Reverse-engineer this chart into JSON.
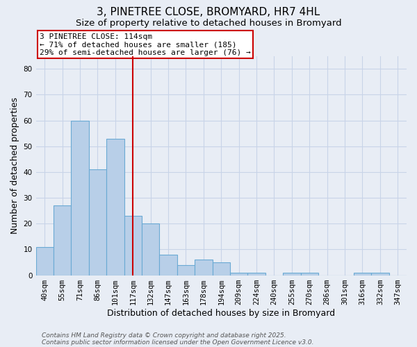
{
  "title": "3, PINETREE CLOSE, BROMYARD, HR7 4HL",
  "subtitle": "Size of property relative to detached houses in Bromyard",
  "xlabel": "Distribution of detached houses by size in Bromyard",
  "ylabel": "Number of detached properties",
  "categories": [
    "40sqm",
    "55sqm",
    "71sqm",
    "86sqm",
    "101sqm",
    "117sqm",
    "132sqm",
    "147sqm",
    "163sqm",
    "178sqm",
    "194sqm",
    "209sqm",
    "224sqm",
    "240sqm",
    "255sqm",
    "270sqm",
    "286sqm",
    "301sqm",
    "316sqm",
    "332sqm",
    "347sqm"
  ],
  "values": [
    11,
    27,
    60,
    41,
    53,
    23,
    20,
    8,
    4,
    6,
    5,
    1,
    1,
    0,
    1,
    1,
    0,
    0,
    1,
    1,
    0
  ],
  "bar_color": "#b8cfe8",
  "bar_edge_color": "#6aaad4",
  "vline_x_index": 5,
  "vline_color": "#cc0000",
  "annotation_text": "3 PINETREE CLOSE: 114sqm\n← 71% of detached houses are smaller (185)\n29% of semi-detached houses are larger (76) →",
  "annotation_box_color": "#ffffff",
  "annotation_box_edge": "#cc0000",
  "ylim": [
    0,
    85
  ],
  "yticks": [
    0,
    10,
    20,
    30,
    40,
    50,
    60,
    70,
    80
  ],
  "grid_color": "#c8d4e8",
  "background_color": "#e8edf5",
  "footnote1": "Contains HM Land Registry data © Crown copyright and database right 2025.",
  "footnote2": "Contains public sector information licensed under the Open Government Licence v3.0.",
  "title_fontsize": 11,
  "subtitle_fontsize": 9.5,
  "xlabel_fontsize": 9,
  "ylabel_fontsize": 9,
  "tick_fontsize": 7.5,
  "footnote_fontsize": 6.5,
  "annotation_fontsize": 8
}
